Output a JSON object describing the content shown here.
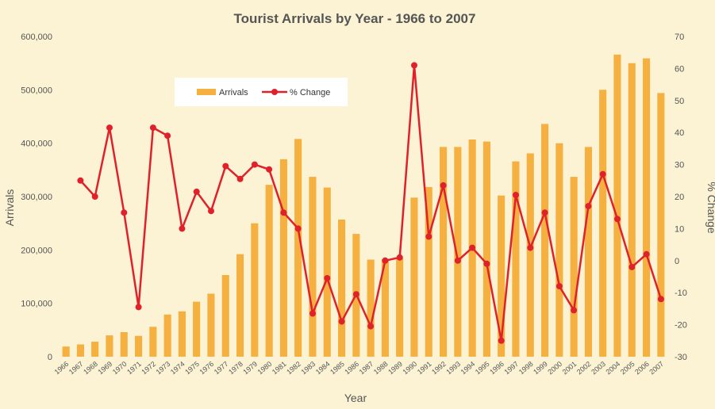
{
  "chart_data": {
    "type": "bar",
    "title": "Tourist Arrivals by Year - 1966 to 2007",
    "xlabel": "Year",
    "ylabel": "Arrivals",
    "y2label": "% Change",
    "categories": [
      "1966",
      "1967",
      "1968",
      "1969",
      "1970",
      "1971",
      "1972",
      "1973",
      "1974",
      "1975",
      "1976",
      "1977",
      "1978",
      "1979",
      "1980",
      "1981",
      "1982",
      "1983",
      "1984",
      "1985",
      "1986",
      "1987",
      "1988",
      "1989",
      "1990",
      "1991",
      "1992",
      "1993",
      "1994",
      "1995",
      "1996",
      "1997",
      "1998",
      "1999",
      "2000",
      "2001",
      "2002",
      "2003",
      "2004",
      "2005",
      "2006",
      "2007"
    ],
    "series": [
      {
        "name": "Arrivals",
        "type": "bar",
        "axis": "left",
        "color": "#f5b040",
        "values": [
          19000,
          23000,
          28000,
          40000,
          46000,
          39000,
          56000,
          79000,
          85000,
          103000,
          118000,
          153000,
          192000,
          250000,
          322000,
          370000,
          408000,
          337000,
          317000,
          257000,
          230000,
          182000,
          183000,
          185000,
          298000,
          318000,
          393000,
          393000,
          407000,
          403000,
          302000,
          366000,
          381000,
          436000,
          400000,
          337000,
          393000,
          500000,
          566000,
          550000,
          559000,
          494000
        ]
      },
      {
        "name": "% Change",
        "type": "line",
        "axis": "right",
        "color": "#e0202a",
        "values": [
          null,
          25,
          20,
          41.5,
          15,
          -14.5,
          41.5,
          39,
          10,
          21.5,
          15.5,
          29.5,
          25.5,
          30,
          28.5,
          15,
          10,
          -16.5,
          -5.5,
          -19,
          -10.5,
          -20.5,
          0,
          1,
          61,
          7.5,
          23.5,
          0,
          4,
          -1,
          -25,
          20.5,
          4,
          15,
          -8,
          -15.5,
          17,
          27,
          13,
          -2,
          2,
          -12
        ]
      }
    ],
    "ylim": [
      0,
      600000
    ],
    "y2lim": [
      -30,
      70
    ],
    "yticks": [
      "0",
      "100,000",
      "200,000",
      "300,000",
      "400,000",
      "500,000",
      "600,000"
    ],
    "y2ticks": [
      "-30",
      "-20",
      "-10",
      "0",
      "10",
      "20",
      "30",
      "40",
      "50",
      "60",
      "70"
    ],
    "grid": false,
    "legend": "top-left inside"
  }
}
